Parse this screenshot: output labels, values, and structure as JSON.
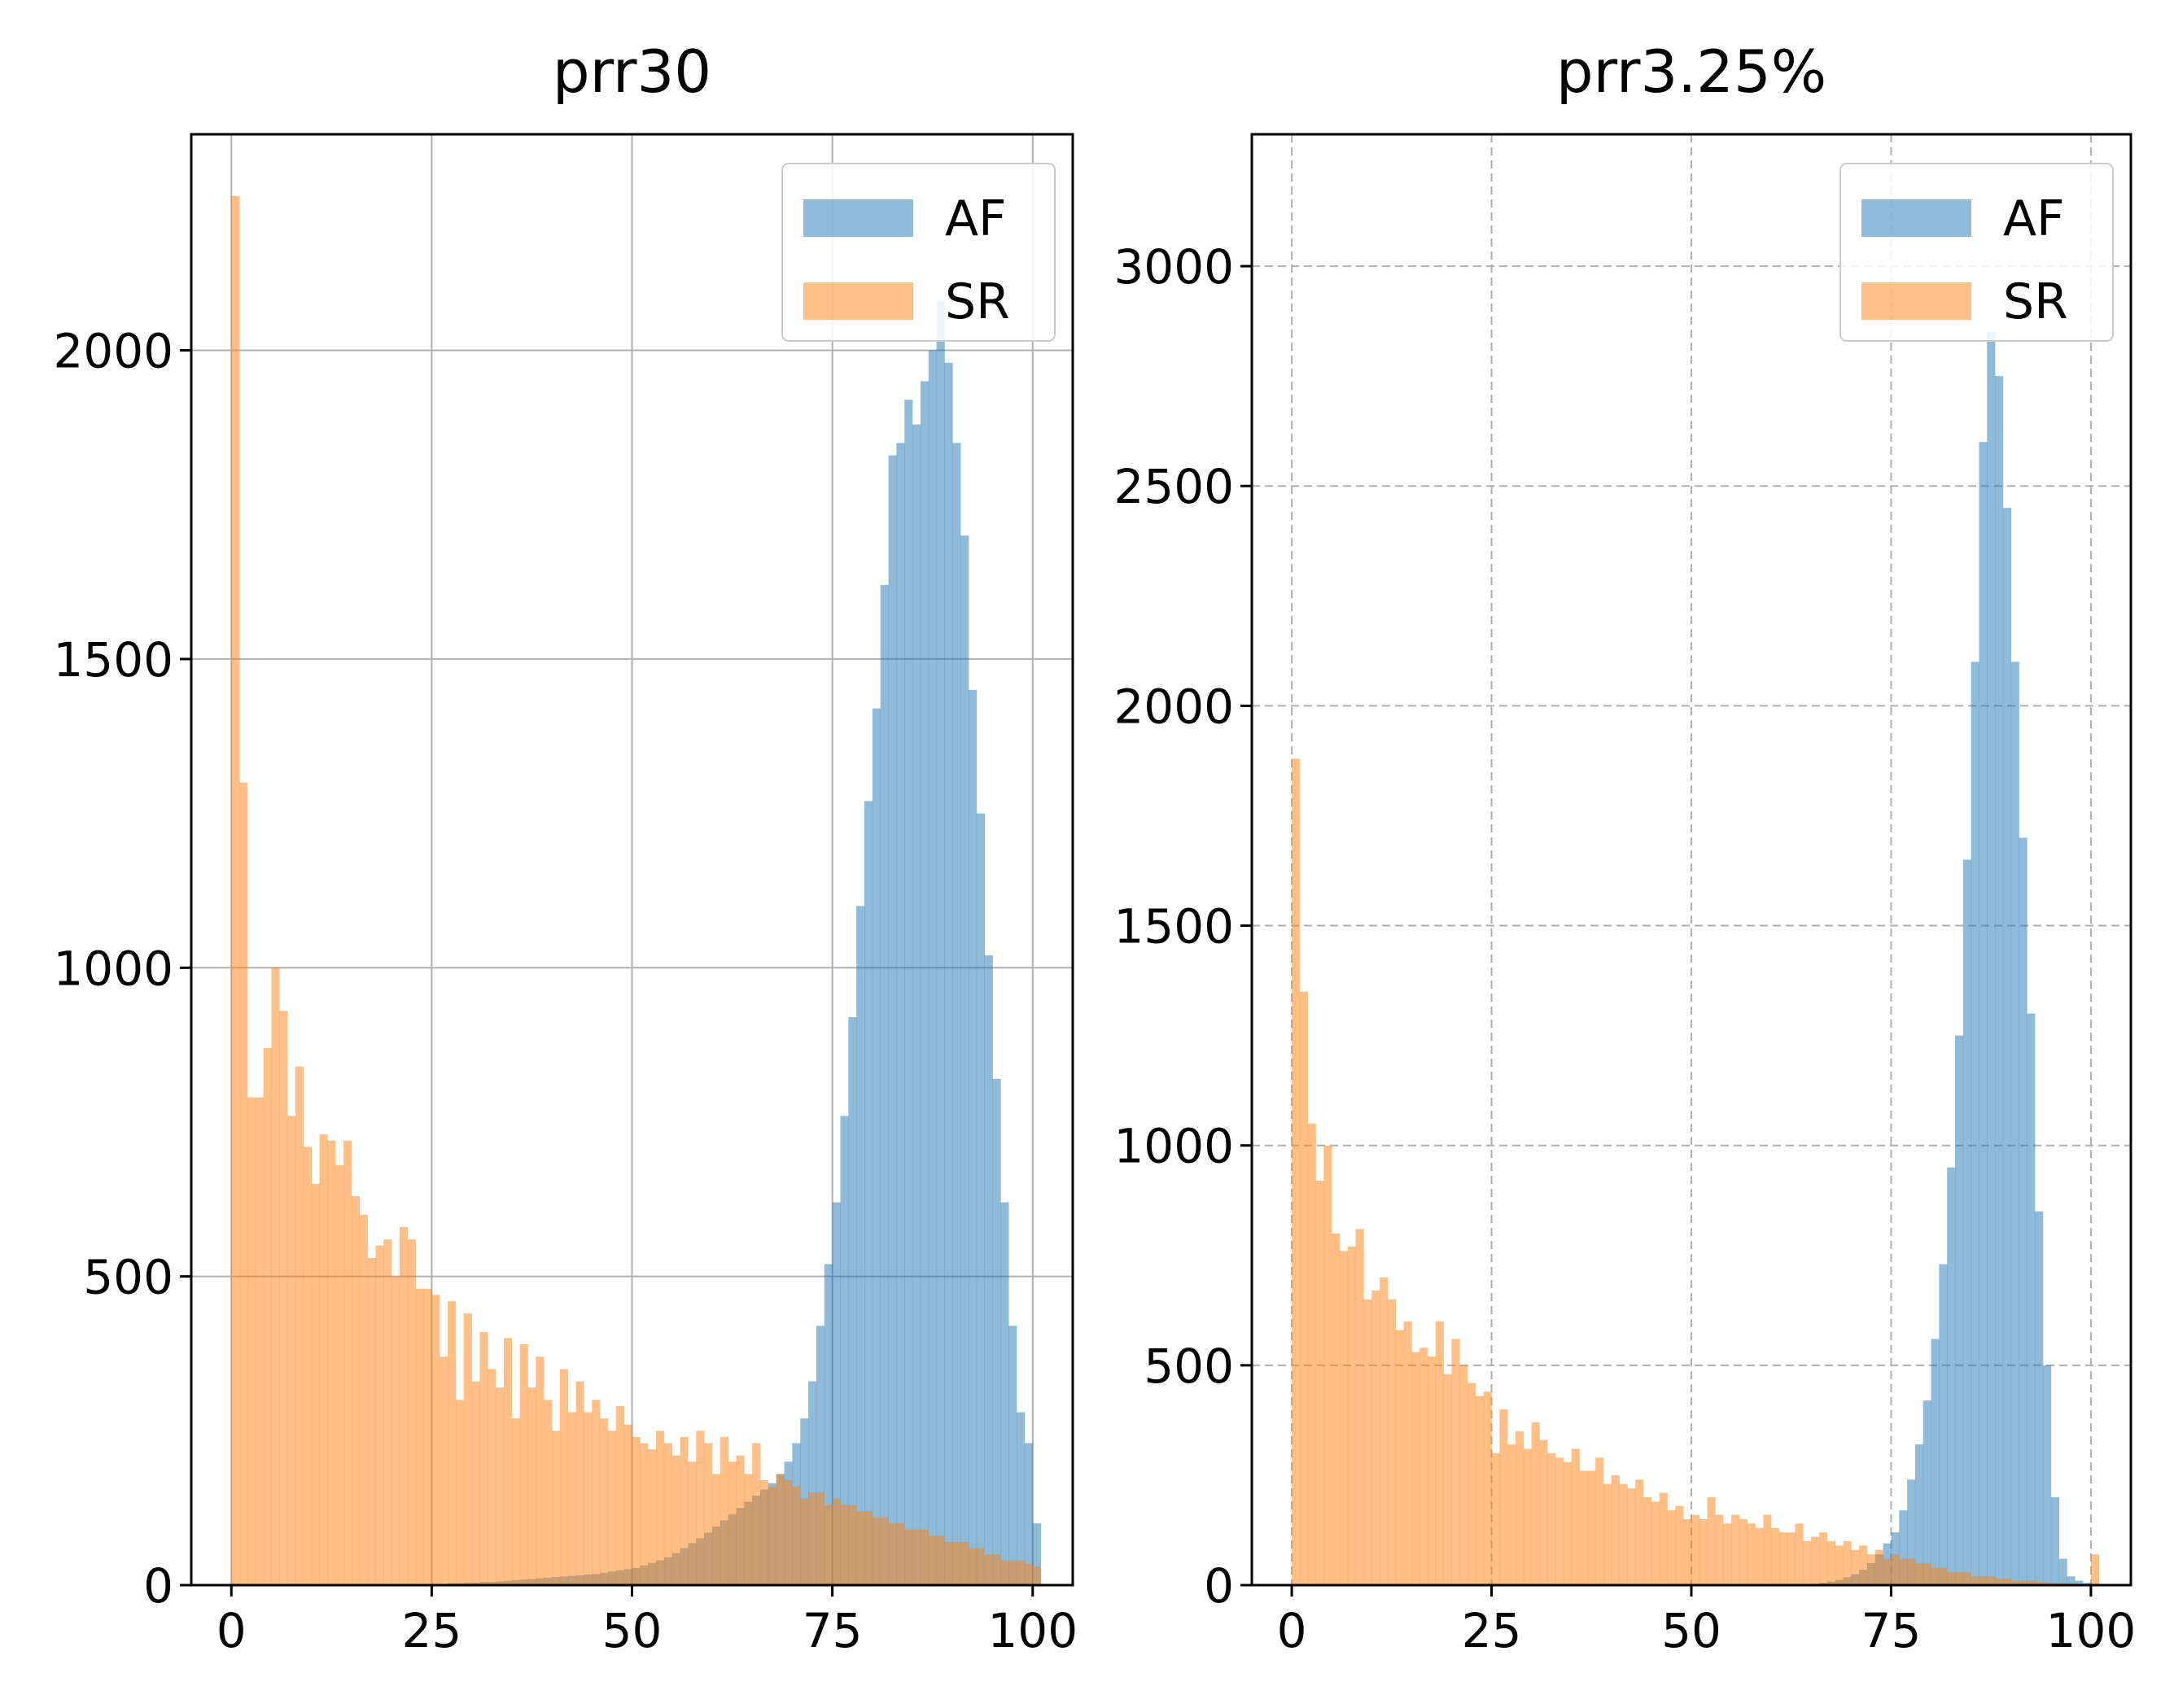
{
  "chart_data": [
    {
      "type": "bar",
      "subtype": "histogram-overlay",
      "title": "prr30",
      "xlabel": "",
      "ylabel": "",
      "xlim": [
        -5,
        105
      ],
      "ylim": [
        0,
        2350
      ],
      "xticks": [
        0,
        25,
        50,
        75,
        100
      ],
      "yticks": [
        0,
        500,
        1000,
        1500,
        2000
      ],
      "grid": true,
      "grid_style": "solid",
      "legend_position": "upper right",
      "bin_width": 1,
      "series": [
        {
          "name": "AF",
          "color": "#1f77b4",
          "opacity": 0.5,
          "counts": [
            0,
            0,
            0,
            0,
            0,
            0,
            0,
            0,
            0,
            0,
            0,
            0,
            0,
            0,
            0,
            0,
            0,
            0,
            0,
            0,
            0,
            0,
            0,
            0,
            0,
            2,
            2,
            3,
            3,
            4,
            4,
            5,
            5,
            6,
            7,
            8,
            9,
            10,
            11,
            12,
            13,
            14,
            15,
            16,
            17,
            18,
            20,
            22,
            24,
            26,
            28,
            32,
            36,
            40,
            45,
            52,
            60,
            68,
            76,
            85,
            95,
            105,
            115,
            125,
            135,
            145,
            155,
            165,
            180,
            200,
            230,
            270,
            330,
            420,
            520,
            620,
            760,
            920,
            1100,
            1270,
            1420,
            1620,
            1830,
            1850,
            1920,
            1880,
            1950,
            2000,
            2080,
            1980,
            1850,
            1700,
            1450,
            1250,
            1020,
            820,
            620,
            420,
            280,
            230,
            100
          ]
        },
        {
          "name": "SR",
          "color": "#ff7f0e",
          "opacity": 0.5,
          "counts": [
            2250,
            1300,
            790,
            790,
            870,
            1000,
            930,
            760,
            840,
            710,
            650,
            730,
            720,
            680,
            720,
            630,
            600,
            530,
            550,
            560,
            500,
            580,
            560,
            480,
            480,
            470,
            370,
            460,
            300,
            440,
            330,
            410,
            350,
            320,
            400,
            270,
            390,
            320,
            370,
            300,
            250,
            350,
            280,
            330,
            280,
            300,
            270,
            250,
            290,
            260,
            240,
            230,
            220,
            250,
            230,
            210,
            240,
            200,
            250,
            230,
            180,
            240,
            200,
            210,
            180,
            230,
            170,
            160,
            180,
            170,
            160,
            140,
            150,
            150,
            130,
            140,
            130,
            130,
            120,
            120,
            110,
            110,
            100,
            100,
            90,
            90,
            90,
            80,
            80,
            70,
            70,
            70,
            60,
            60,
            50,
            50,
            40,
            40,
            40,
            35,
            30
          ]
        }
      ]
    },
    {
      "type": "bar",
      "subtype": "histogram-overlay",
      "title": "prr3.25%",
      "xlabel": "",
      "ylabel": "",
      "xlim": [
        -5,
        105
      ],
      "ylim": [
        0,
        3300
      ],
      "xticks": [
        0,
        25,
        50,
        75,
        100
      ],
      "yticks": [
        0,
        500,
        1000,
        1500,
        2000,
        2500,
        3000
      ],
      "grid": true,
      "grid_style": "dashed",
      "legend_position": "upper right",
      "bin_width": 1,
      "series": [
        {
          "name": "AF",
          "color": "#1f77b4",
          "opacity": 0.5,
          "counts": [
            0,
            0,
            0,
            0,
            0,
            0,
            0,
            0,
            0,
            0,
            0,
            0,
            0,
            0,
            0,
            0,
            0,
            0,
            0,
            0,
            0,
            0,
            0,
            0,
            0,
            0,
            0,
            0,
            0,
            0,
            0,
            0,
            0,
            0,
            0,
            0,
            0,
            0,
            0,
            0,
            0,
            0,
            0,
            0,
            0,
            0,
            0,
            0,
            0,
            0,
            0,
            0,
            0,
            0,
            0,
            0,
            0,
            0,
            0,
            0,
            0,
            0,
            0,
            0,
            2,
            3,
            5,
            8,
            12,
            18,
            25,
            35,
            50,
            70,
            95,
            120,
            170,
            240,
            320,
            420,
            560,
            730,
            950,
            1250,
            1650,
            2100,
            2600,
            2850,
            2750,
            2450,
            2100,
            1700,
            1300,
            850,
            500,
            200,
            60,
            20,
            10,
            5,
            3
          ]
        },
        {
          "name": "SR",
          "color": "#ff7f0e",
          "opacity": 0.5,
          "counts": [
            1880,
            1350,
            1050,
            920,
            1000,
            800,
            760,
            770,
            810,
            650,
            670,
            700,
            650,
            580,
            600,
            530,
            540,
            520,
            600,
            480,
            560,
            500,
            460,
            430,
            440,
            300,
            400,
            320,
            350,
            310,
            370,
            330,
            300,
            290,
            280,
            310,
            260,
            260,
            290,
            230,
            250,
            230,
            220,
            240,
            200,
            190,
            210,
            170,
            180,
            150,
            160,
            150,
            200,
            160,
            140,
            160,
            150,
            140,
            130,
            160,
            130,
            120,
            120,
            140,
            100,
            110,
            120,
            100,
            90,
            100,
            80,
            90,
            70,
            80,
            60,
            70,
            60,
            60,
            50,
            50,
            40,
            40,
            30,
            30,
            30,
            20,
            20,
            20,
            15,
            15,
            10,
            10,
            10,
            8,
            6,
            5,
            5,
            4,
            3,
            3,
            70
          ]
        }
      ]
    }
  ]
}
